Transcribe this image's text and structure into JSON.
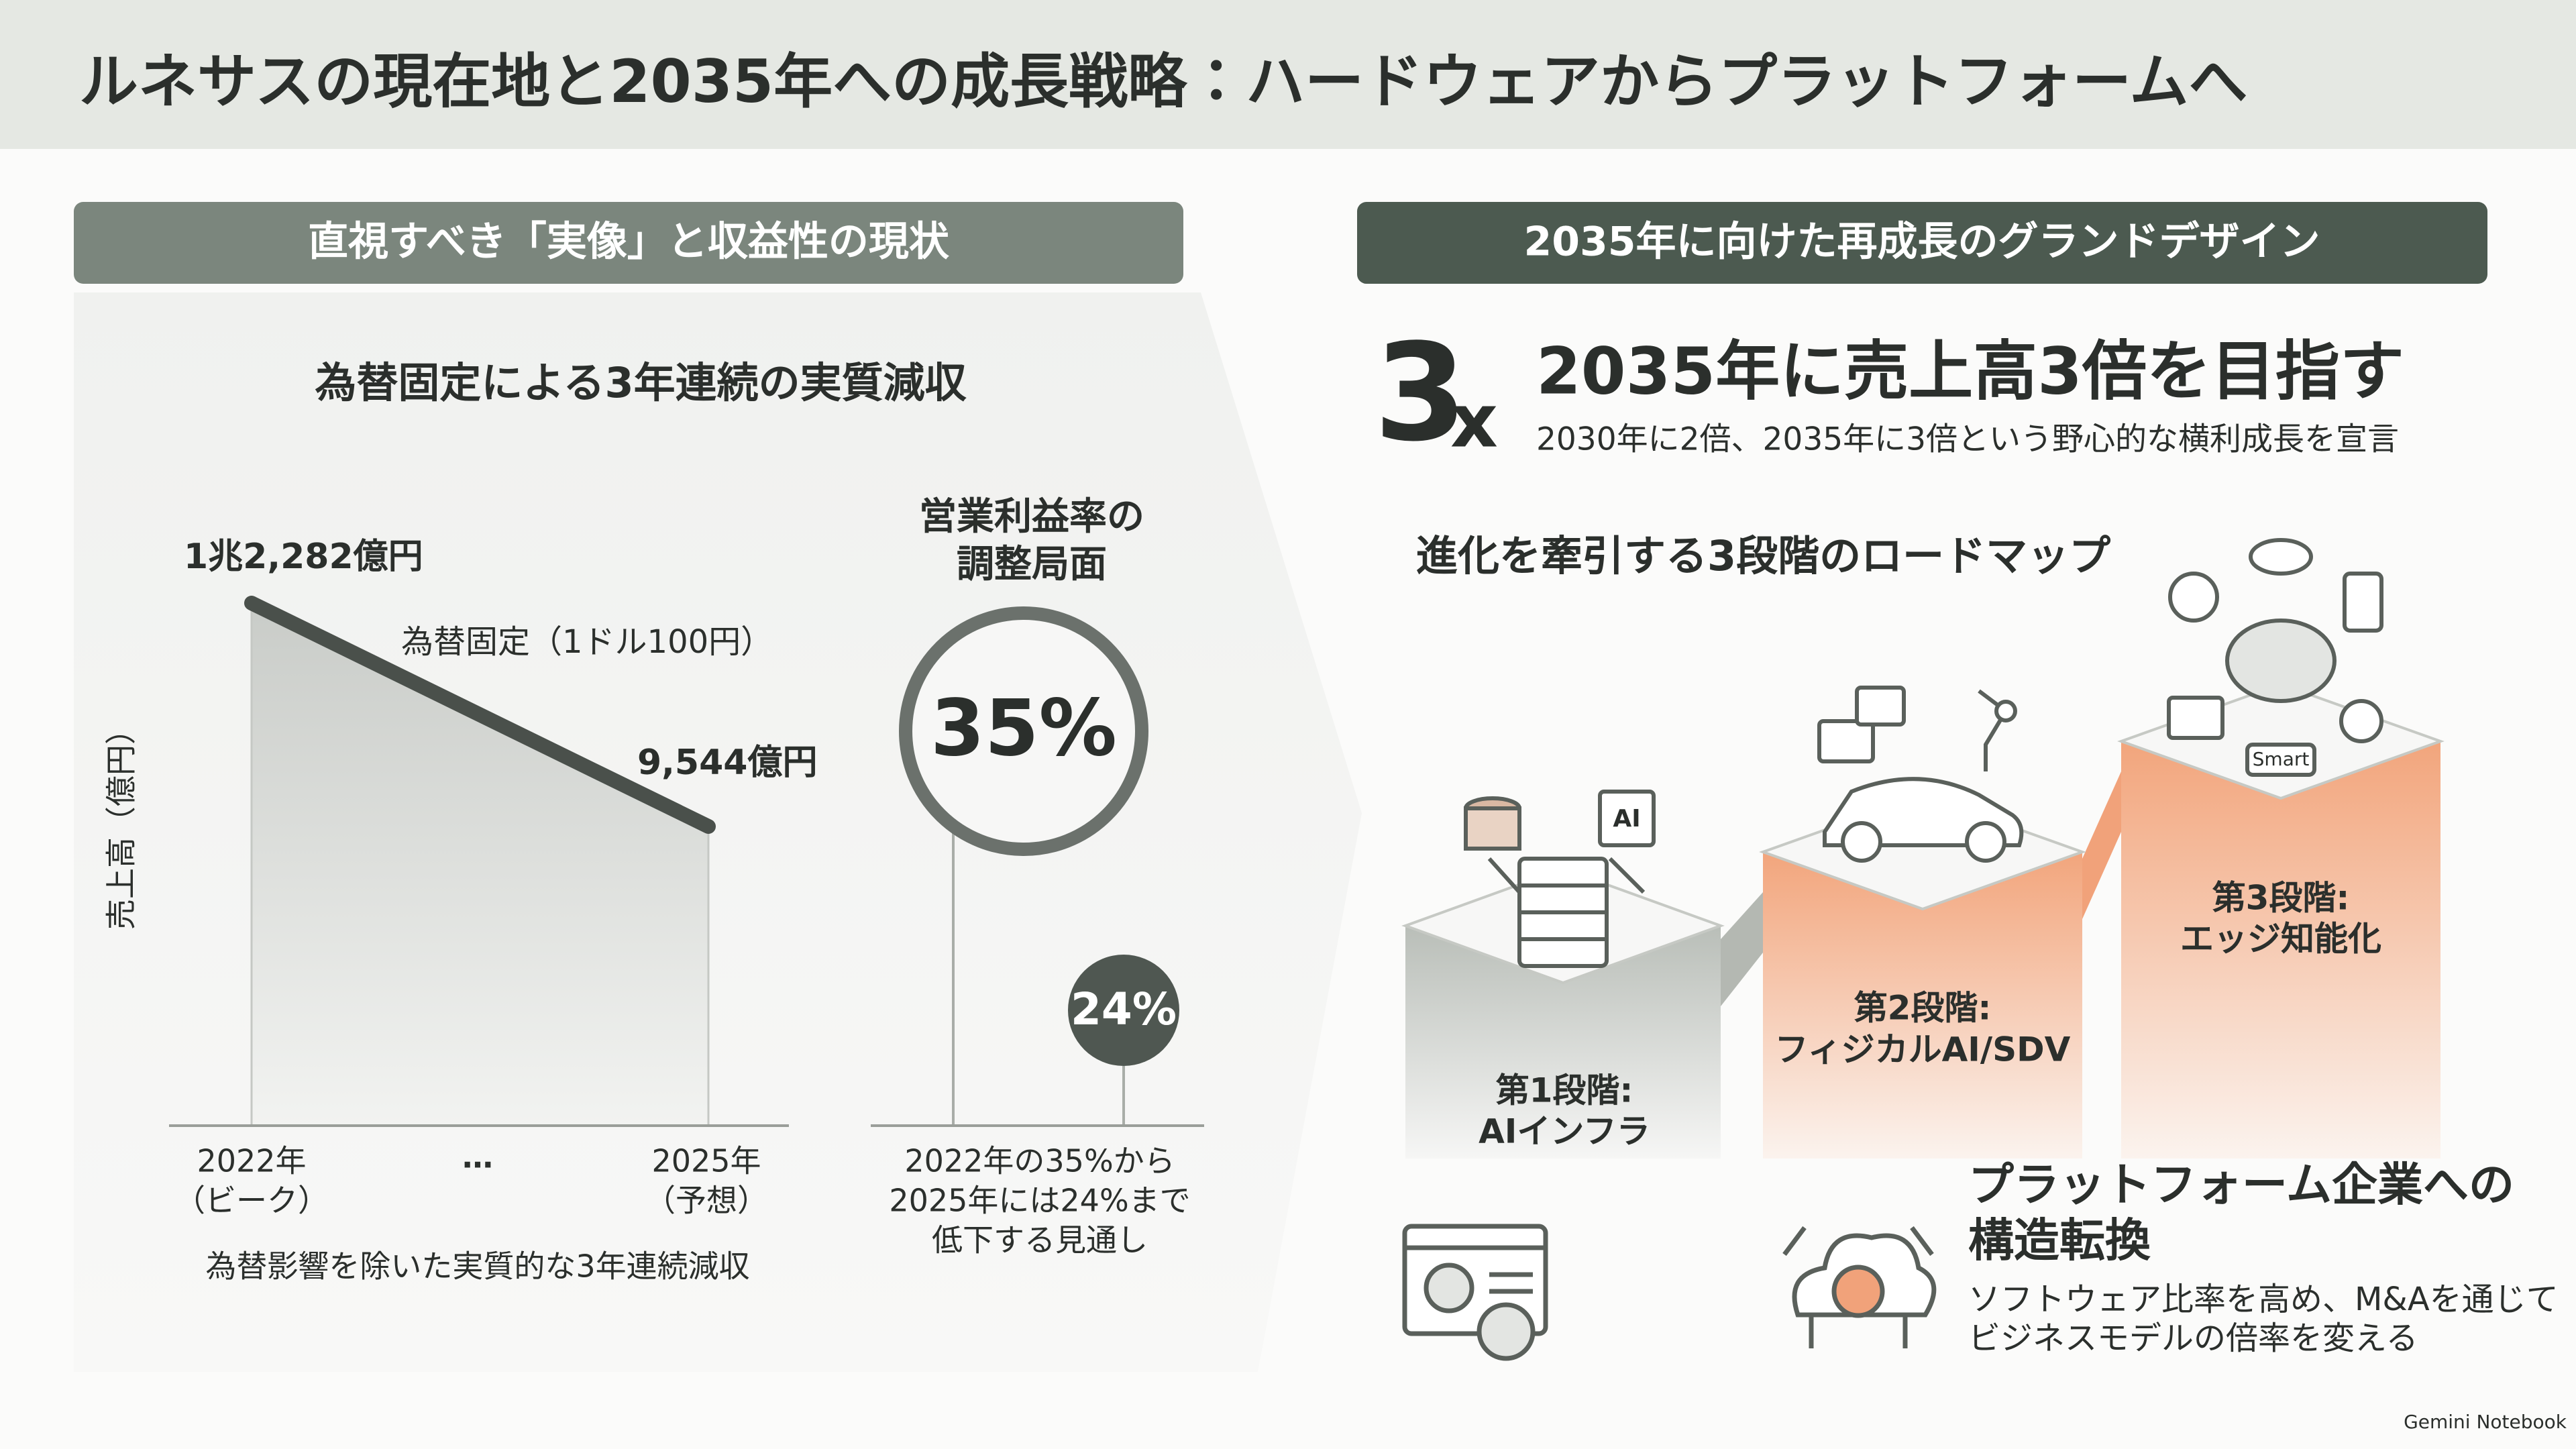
{
  "header": {
    "title": "ルネサスの現在地と2035年への成長戦略：ハードウェアからプラットフォームへ"
  },
  "left": {
    "heading": "直視すべき「実像」と収益性の現状",
    "revenue": {
      "title": "為替固定による3年連続の実質減収",
      "peak_label": "1兆2,282億円",
      "note": "為替固定（1ドル100円）",
      "end_label": "9,544億円",
      "axis_label": "売上高（億円）",
      "start_lines": [
        "2022年",
        "（ビーク）"
      ],
      "ellipsis": "…",
      "end_lines": [
        "2025年",
        "（予想）"
      ],
      "caption": "為替影響を除いた実質的な3年連続減収"
    },
    "margin": {
      "title_lines": [
        "営業利益率の",
        "調整局面"
      ],
      "start": "35%",
      "end": "24%",
      "caption_lines": [
        "2022年の35%から",
        "2025年には24%まで",
        "低下する見通し"
      ]
    }
  },
  "right": {
    "heading": "2035年に向けた再成長のグランドデザイン",
    "goal": {
      "big": "3",
      "suffix": "x",
      "title": "2035年に売上高3倍を目指す",
      "subtitle": "2030年に2倍、2035年に3倍という野心的な横利成長を宣言"
    },
    "roadmap": {
      "title": "進化を牽引する3段階のロードマップ",
      "icon_texts": [
        "AI",
        "Smart"
      ],
      "stages": [
        {
          "step": "第1段階:",
          "name": "AIインフラ"
        },
        {
          "step": "第2段階:",
          "name": "フィジカルAI/SDV"
        },
        {
          "step": "第3段階:",
          "name": "エッジ知能化"
        }
      ]
    },
    "platform": {
      "title_lines": [
        "プラットフォーム企業への",
        "構造転換"
      ],
      "body_lines": [
        "ソフトウェア比率を高め、M&Aを通じて",
        "ビジネスモデルの倍率を変える"
      ]
    }
  },
  "footer": {
    "brand": "Gemini Notebook"
  }
}
